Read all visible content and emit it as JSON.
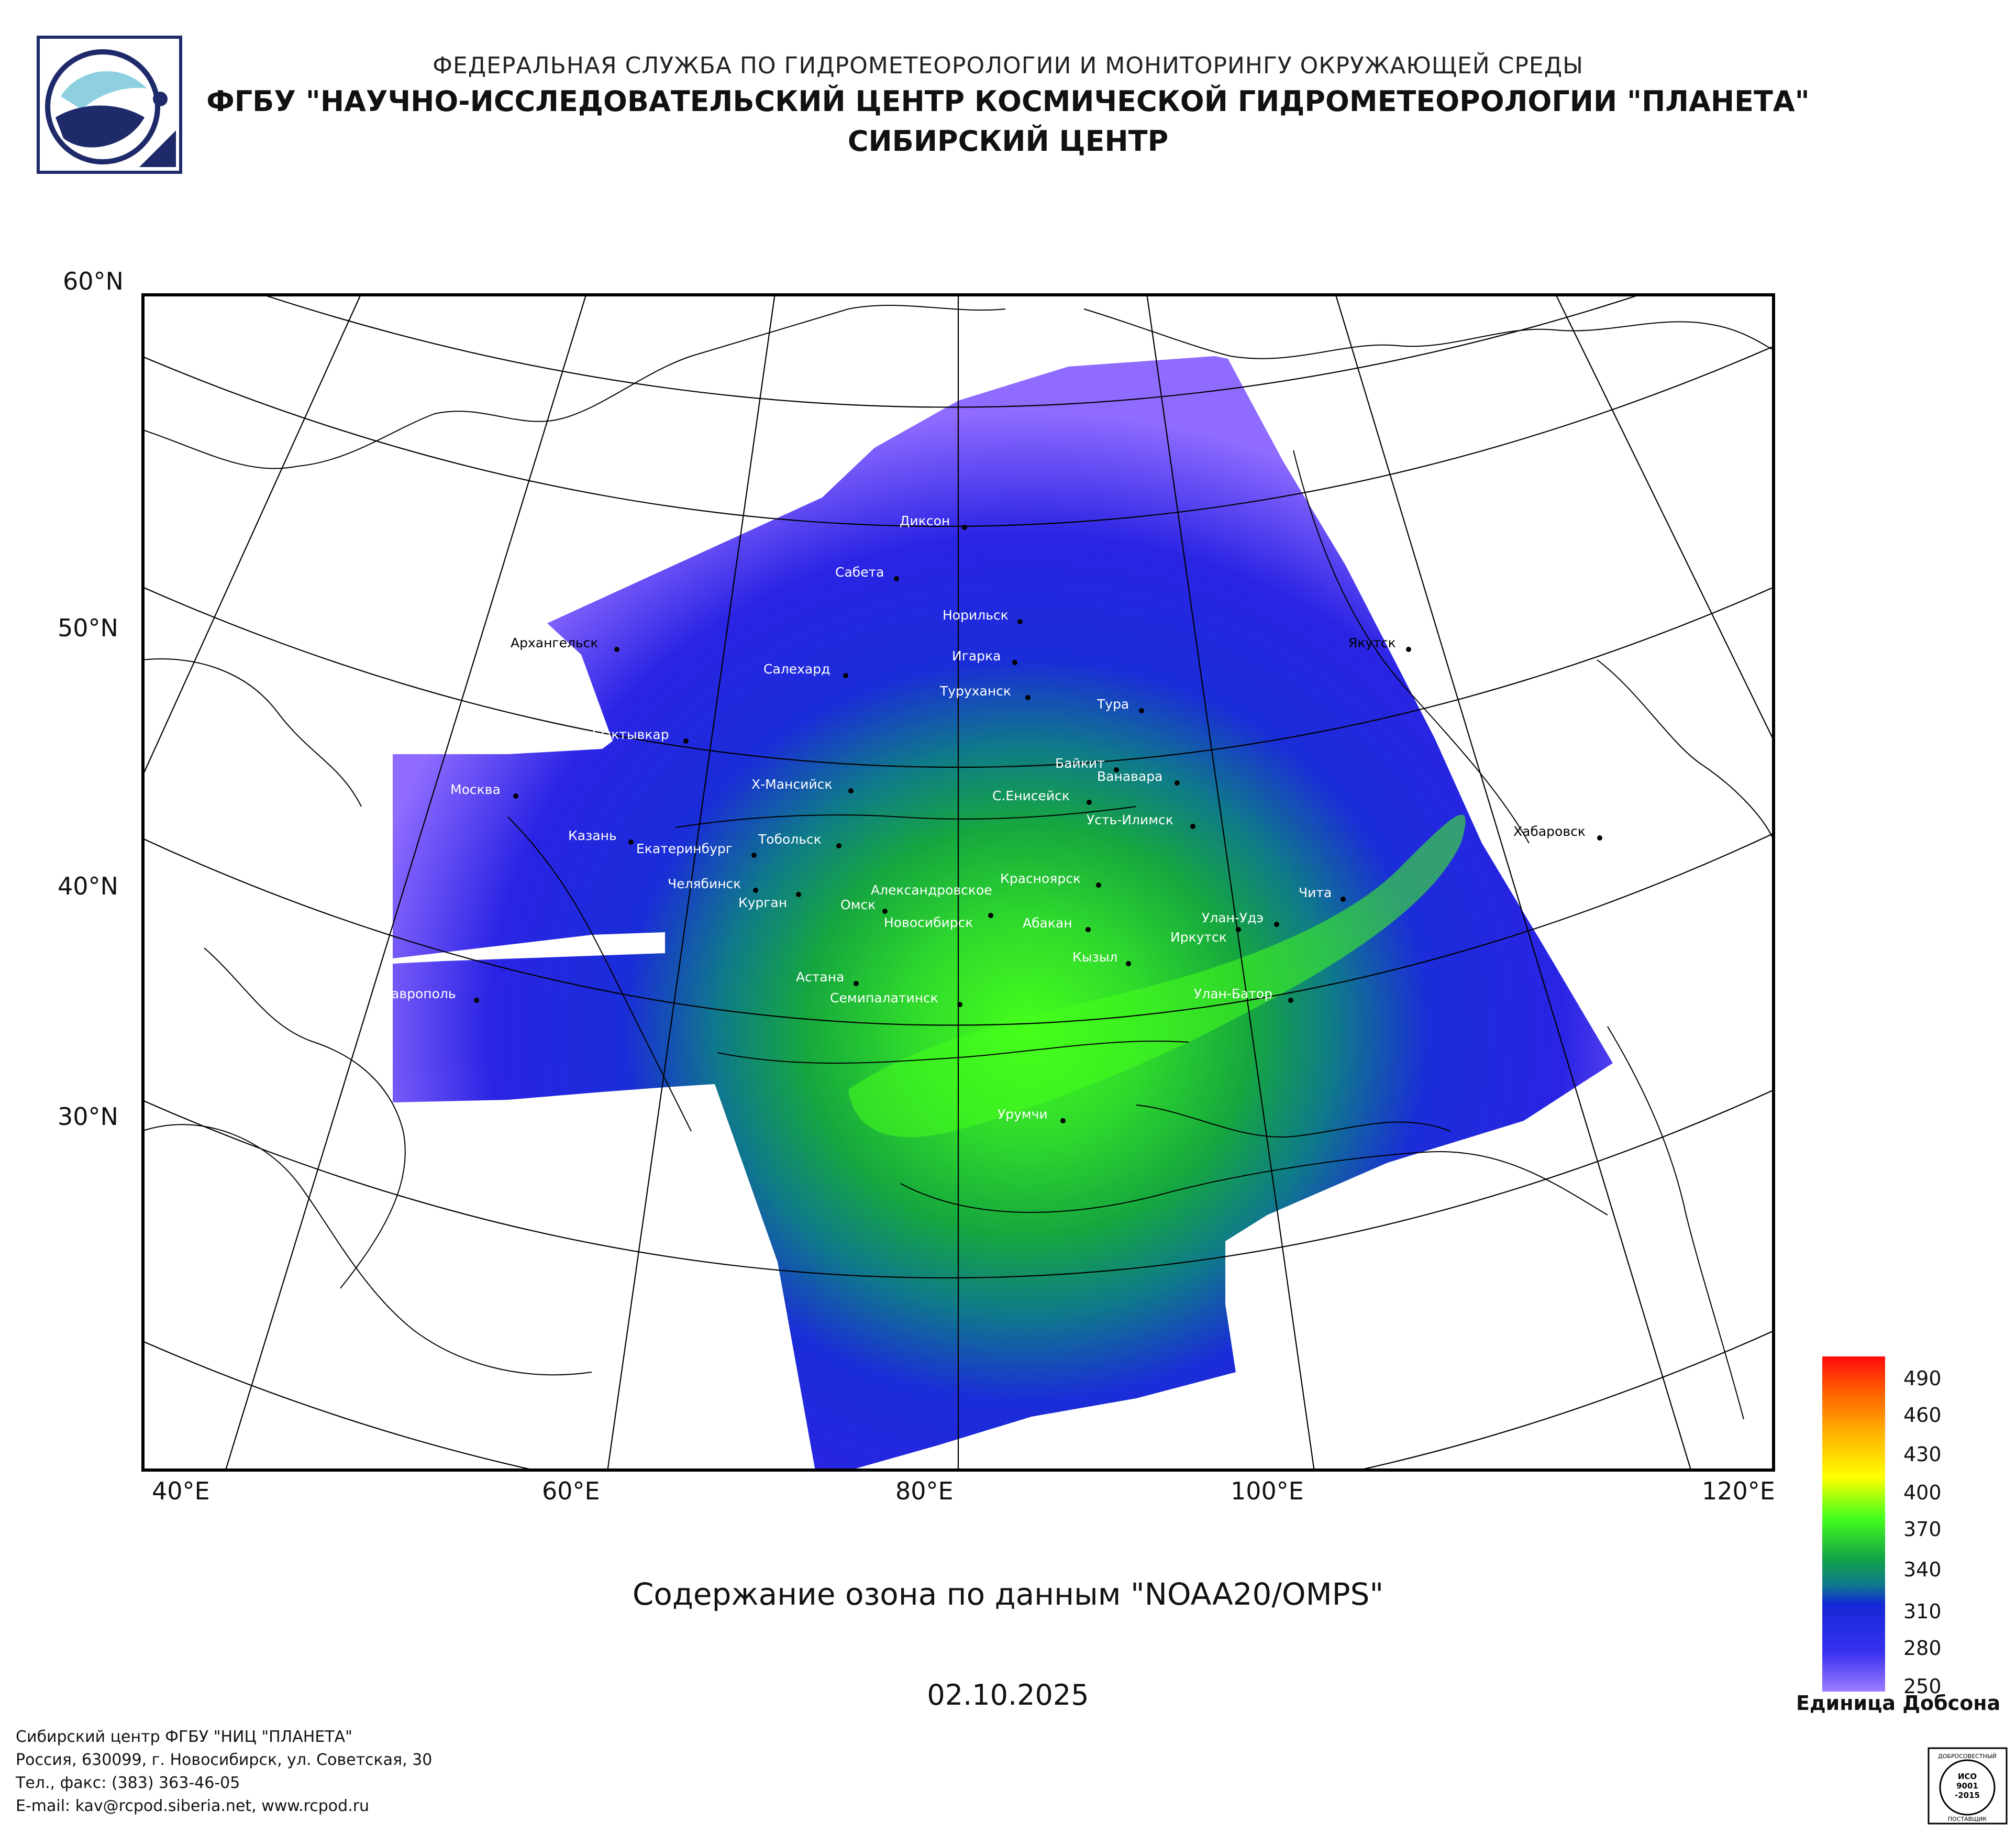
{
  "header": {
    "line1": "ФЕДЕРАЛЬНАЯ СЛУЖБА ПО ГИДРОМЕТЕОРОЛОГИИ И МОНИТОРИНГУ ОКРУЖАЮЩЕЙ СРЕДЫ",
    "line2": "ФГБУ \"НАУЧНО-ИССЛЕДОВАТЕЛЬСКИЙ ЦЕНТР КОСМИЧЕСКОЙ ГИДРОМЕТЕОРОЛОГИИ \"ПЛАНЕТА\"",
    "line3": "СИБИРСКИЙ ЦЕНТР"
  },
  "map": {
    "lat_labels": [
      "60°N",
      "50°N",
      "40°N",
      "30°N"
    ],
    "lon_labels": [
      "40°E",
      "60°E",
      "80°E",
      "100°E",
      "120°E"
    ],
    "cities_white": [
      "Диксон",
      "Сабета",
      "Норильск",
      "Игарка",
      "Салехард",
      "Туруханск",
      "Тура",
      "Сыктывкар",
      "Байкит",
      "Ванавара",
      "Х-Мансийск",
      "С.Енисейск",
      "Усть-Илимск",
      "Москва",
      "Казань",
      "Екатеринбург",
      "Тобольск",
      "Красноярск",
      "Челябинск",
      "Курган",
      "Александровское",
      "Омск",
      "Новосибирск",
      "Абакан",
      "Улан-Удэ",
      "Иркутск",
      "Чита",
      "Кызыл",
      "Астана",
      "Семипалатинск",
      "Улан-Батор",
      "Ставрополь",
      "Урумчи"
    ],
    "cities_dark": [
      "Архангельск",
      "Якутск",
      "Хабаровск"
    ],
    "colors": {
      "low": "#8f6bff",
      "mid": "#1a2dd8",
      "teal": "#0f7a8a",
      "green": "#22c93a",
      "bright": "#46ff1c"
    }
  },
  "chart_data": {
    "type": "heatmap",
    "title": "Содержание озона по данным \"NOAA20/OMPS\"",
    "date": "02.10.2025",
    "colorbar": {
      "unit": "Единица Добсона",
      "ticks": [
        490,
        460,
        430,
        400,
        370,
        340,
        310,
        280,
        250
      ],
      "range": [
        250,
        490
      ]
    }
  },
  "footer": {
    "line1": "Сибирский центр ФГБУ \"НИЦ \"ПЛАНЕТА\"",
    "line2": "Россия, 630099, г. Новосибирск, ул. Советская, 30",
    "line3": "Тел., факс: (383) 363-46-05",
    "line4": "E-mail: kav@rcpod.siberia.net, www.rcpod.ru"
  },
  "cert": {
    "l1": "ДОБРОСОВЕСТНЫЙ",
    "l2": "ИСО",
    "l3": "9001",
    "l4": "-2015",
    "l5": "ПОСТАВЩИК"
  }
}
